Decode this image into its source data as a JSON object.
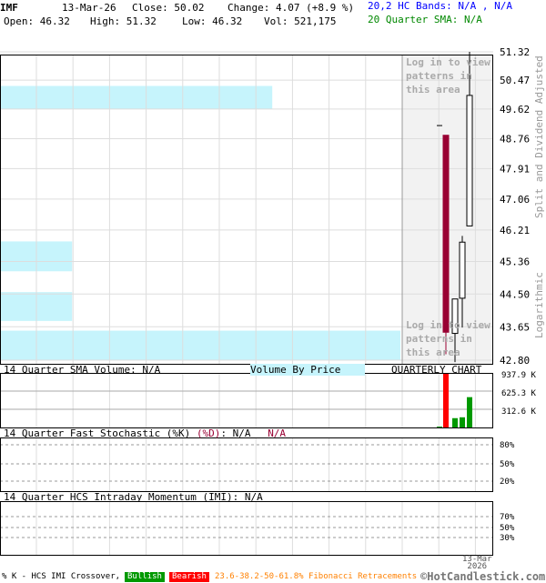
{
  "header": {
    "symbol": "IMF",
    "date": "13-Mar-26",
    "close": "Close: 50.02",
    "change": "Change: 4.07 (+8.9 %)",
    "open": "Open: 46.32",
    "high": "High: 51.32",
    "low": "Low: 46.32",
    "vol": "Vol: 521,175",
    "bands": "20,2 HC Bands: N/A , N/A",
    "sma": "20 Quarter SMA: N/A"
  },
  "colors": {
    "bands": "#0000ff",
    "sma": "#008800",
    "bear": "#990033",
    "vbp": "#c6f4fc",
    "vol_up": "#009900",
    "vol_down": "#ff0000"
  },
  "chart_data": [
    {
      "type": "candlestick",
      "title": "QUARTERLY CHART",
      "scale": "log",
      "ylim": [
        42.8,
        51.32
      ],
      "y_ticks": [
        "51.32",
        "50.47",
        "49.62",
        "48.76",
        "47.91",
        "47.06",
        "46.21",
        "45.36",
        "44.50",
        "43.65",
        "42.80"
      ],
      "ylabel_top": "Split and Dividend Adjusted",
      "ylabel_bottom": "Logarithmic",
      "grid": true,
      "candles": [
        {
          "open": 49.14,
          "high": 49.14,
          "low": 49.14,
          "close": 49.14
        },
        {
          "open": 48.86,
          "high": 48.86,
          "low": 42.95,
          "close": 43.51
        },
        {
          "open": 43.48,
          "high": 44.37,
          "low": 42.75,
          "close": 44.37
        },
        {
          "open": 44.39,
          "high": 46.05,
          "low": 43.63,
          "close": 45.88
        },
        {
          "open": 46.32,
          "high": 51.32,
          "low": 46.32,
          "close": 50.02
        }
      ],
      "volume_by_price": [
        {
          "low": 49.62,
          "high": 50.3,
          "relative": 0.68
        },
        {
          "low": 45.1,
          "high": 45.9,
          "relative": 0.18
        },
        {
          "low": 43.8,
          "high": 44.55,
          "relative": 0.18
        },
        {
          "low": 42.8,
          "high": 43.55,
          "relative": 1.0
        }
      ],
      "watermark": "Log in to view patterns in this area",
      "x_label": "13-Mar 2026"
    },
    {
      "type": "bar",
      "title": "14 Quarter SMA Volume: N/A",
      "overlay_label": "Volume By Price",
      "y_ticks": [
        "937.9 K",
        "625.3 K",
        "312.6 K"
      ],
      "ylim": [
        0,
        937900
      ],
      "values": [
        15000,
        937900,
        160000,
        175000,
        521175
      ],
      "directions": [
        "up",
        "down",
        "up",
        "up",
        "up"
      ]
    },
    {
      "type": "line",
      "title": "14 Quarter Fast Stochastic (%K)",
      "title_d": "(%D)",
      "k": ": N/A",
      "d": "N/A",
      "y_ticks": [
        "80%",
        "50%",
        "20%"
      ]
    },
    {
      "type": "line",
      "title": "14 Quarter HCS Intraday Momentum (IMI): N/A",
      "y_ticks": [
        "70%",
        "50%",
        "30%"
      ]
    }
  ],
  "footer": {
    "crossover": "% K - HCS IMI Crossover,",
    "bullish": "Bullish",
    "bearish": "Bearish",
    "fib": "23.6-38.2-50-61.8% Fibonacci Retracements",
    "copyright": "©HotCandlestick.com",
    "date1": "13-Mar",
    "date2": "2026"
  }
}
